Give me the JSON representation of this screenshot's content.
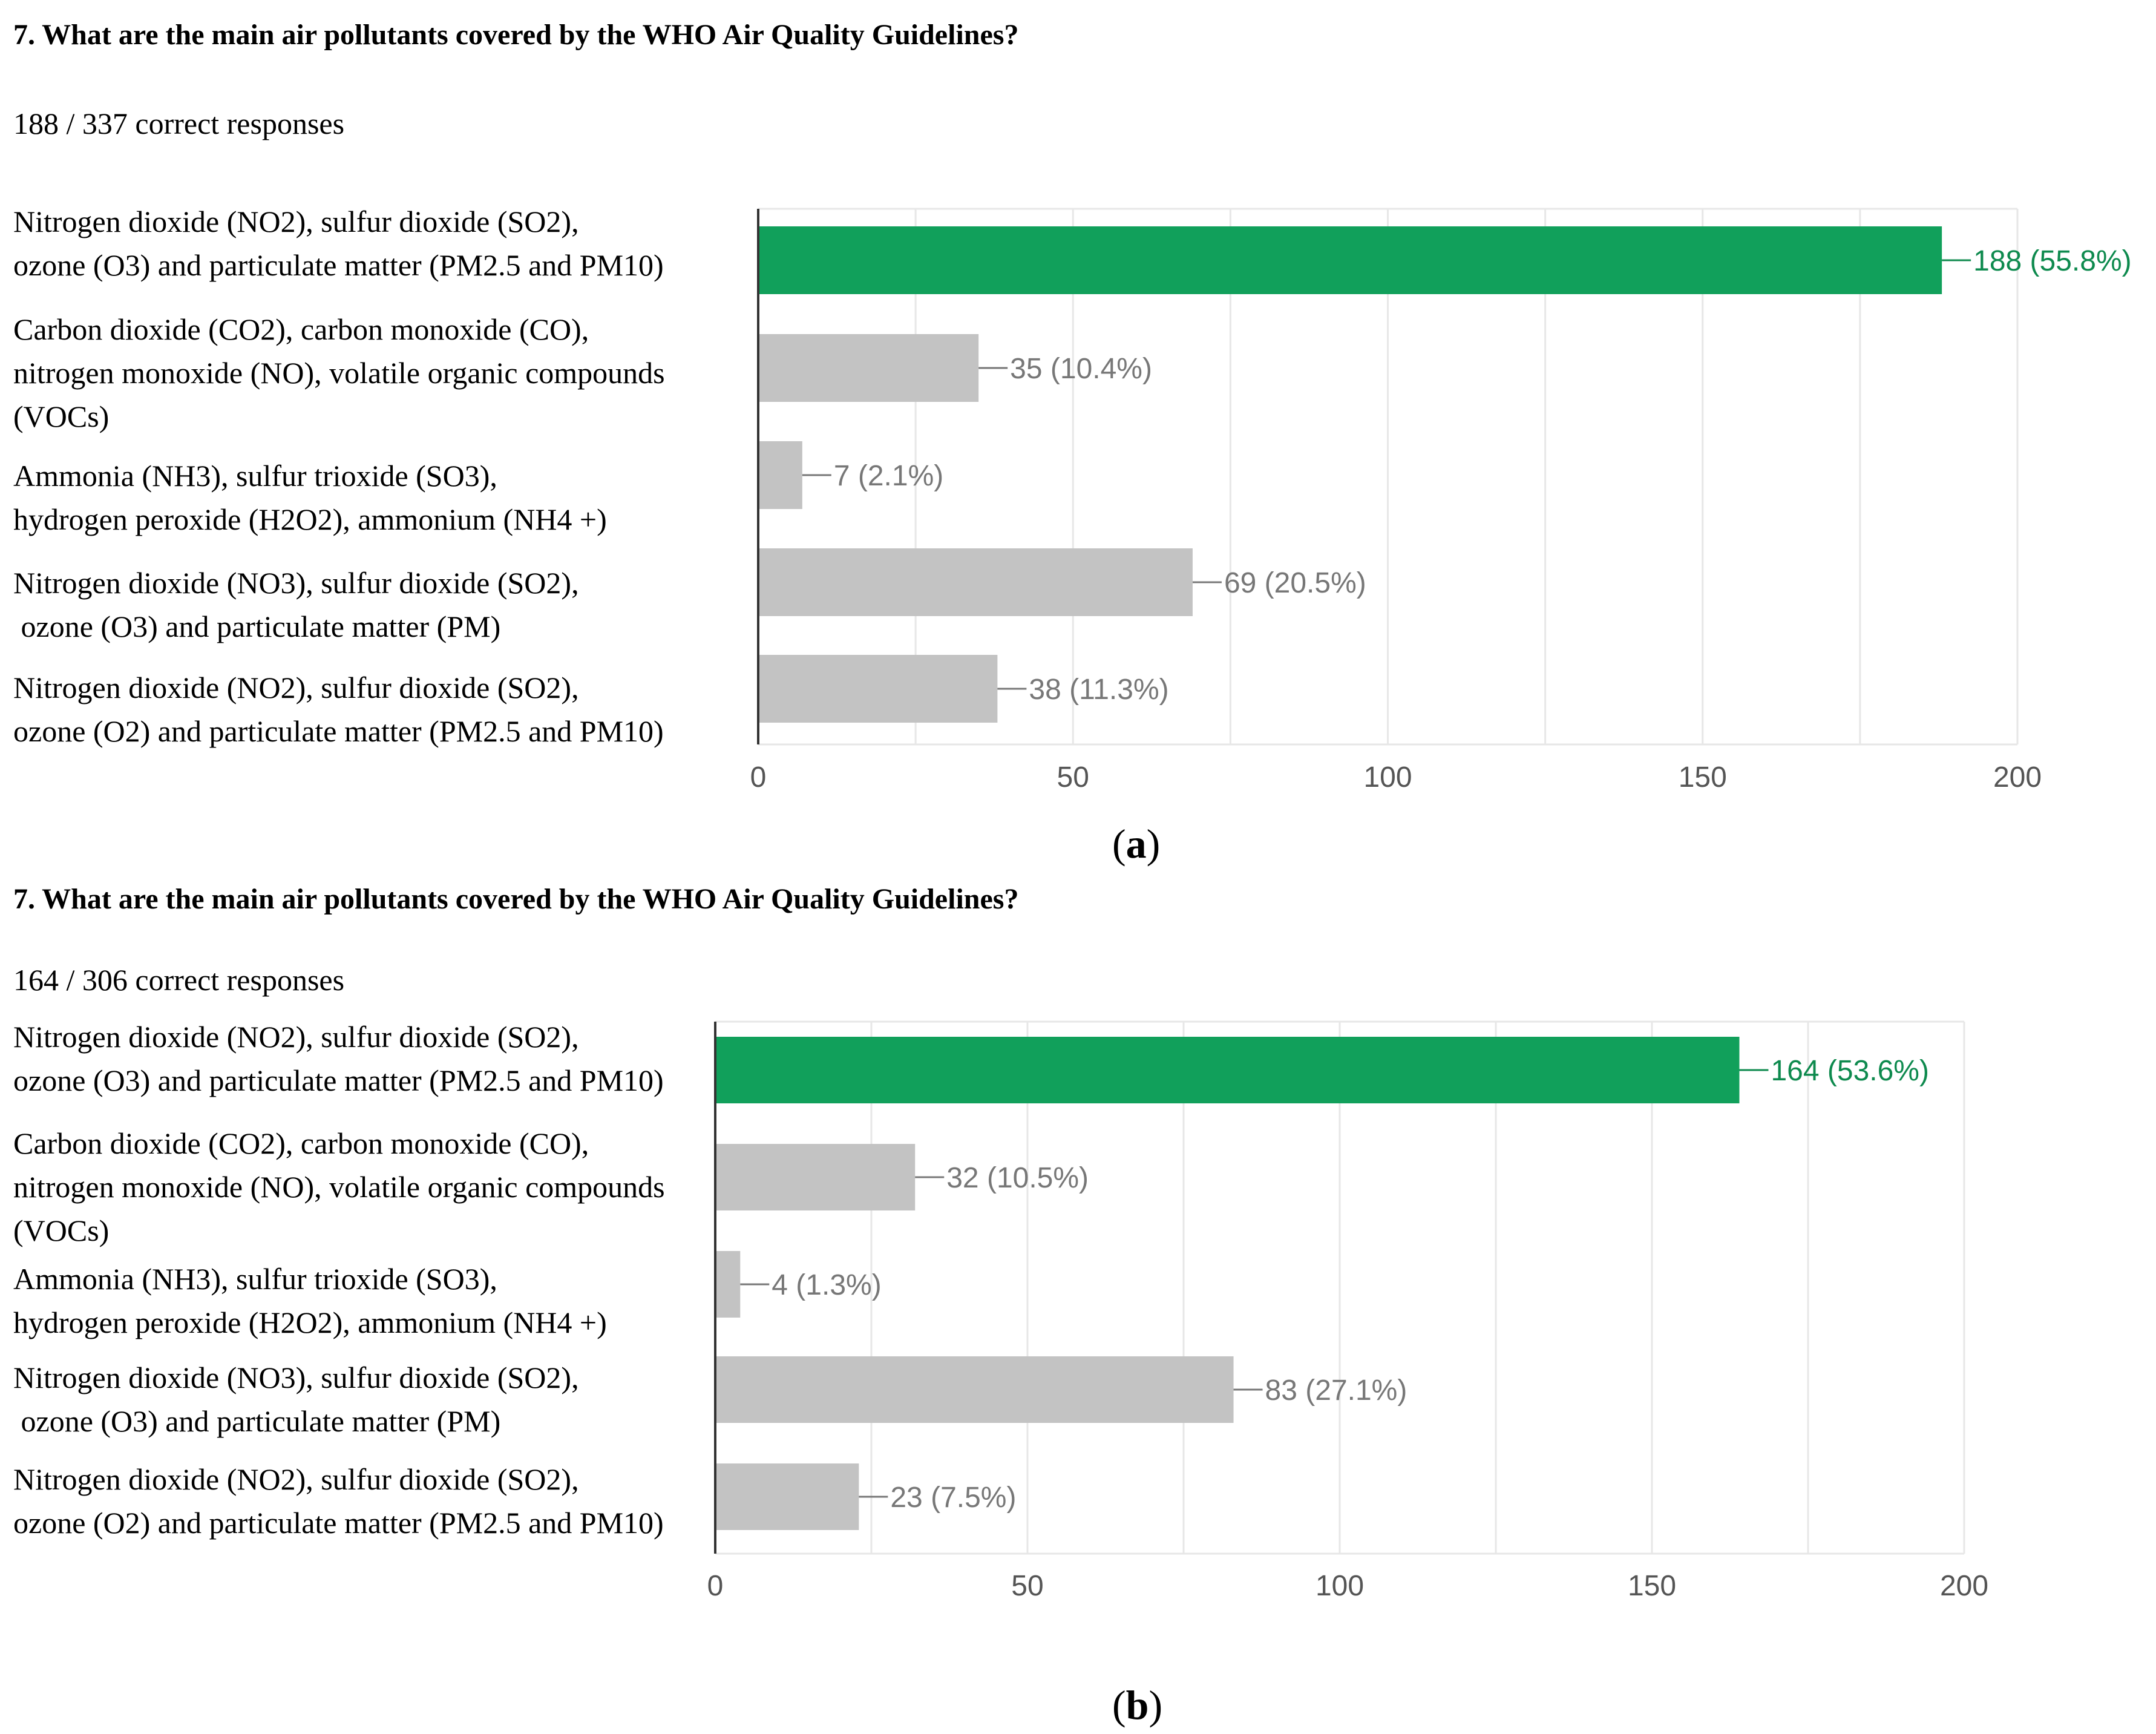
{
  "colors": {
    "correct_bar": "#11a05b",
    "correct_label": "#0e8a4e",
    "other_bar": "#c3c3c3",
    "other_label": "#777777",
    "grid": "#e7e7e7",
    "axis": "#333333",
    "tick": "#555555"
  },
  "panels": [
    {
      "question": "7. What are the main air pollutants covered by the WHO Air Quality Guidelines?",
      "responses": "188 / 337 correct responses",
      "caption": {
        "open": "(",
        "letter": "a",
        "close": ")"
      },
      "categories": [
        [
          "Nitrogen dioxide (NO2), sulfur dioxide (SO2),",
          "ozone (O3) and particulate matter (PM2.5 and PM10)"
        ],
        [
          "Carbon dioxide (CO2), carbon monoxide (CO),",
          "nitrogen monoxide (NO), volatile organic compounds",
          "(VOCs)"
        ],
        [
          "Ammonia (NH3), sulfur trioxide (SO3),",
          "hydrogen peroxide (H2O2), ammonium (NH4 +)"
        ],
        [
          "Nitrogen dioxide (NO3), sulfur dioxide (SO2),",
          " ozone (O3) and particulate matter (PM)"
        ],
        [
          "Nitrogen dioxide (NO2), sulfur dioxide (SO2),",
          "ozone (O2) and particulate matter (PM2.5 and PM10)"
        ]
      ]
    },
    {
      "question": "7. What are the main air pollutants covered by the WHO Air Quality Guidelines?",
      "responses": "164 / 306 correct responses",
      "caption": {
        "open": "(",
        "letter": "b",
        "close": ")"
      },
      "categories": [
        [
          "Nitrogen dioxide (NO2), sulfur dioxide (SO2),",
          "ozone (O3) and particulate matter (PM2.5 and PM10)"
        ],
        [
          "Carbon dioxide (CO2), carbon monoxide (CO),",
          "nitrogen monoxide (NO), volatile organic compounds",
          "(VOCs)"
        ],
        [
          "Ammonia (NH3), sulfur trioxide (SO3),",
          "hydrogen peroxide (H2O2), ammonium (NH4 +)"
        ],
        [
          "Nitrogen dioxide (NO3), sulfur dioxide (SO2),",
          " ozone (O3) and particulate matter (PM)"
        ],
        [
          "Nitrogen dioxide (NO2), sulfur dioxide (SO2),",
          "ozone (O2) and particulate matter (PM2.5 and PM10)"
        ]
      ]
    }
  ],
  "chart_data": [
    {
      "type": "bar",
      "orientation": "horizontal",
      "title": "7. What are the main air pollutants covered by the WHO Air Quality Guidelines?",
      "subtitle": "188 / 337 correct responses",
      "categories": [
        "Nitrogen dioxide (NO2), sulfur dioxide (SO2), ozone (O3) and particulate matter (PM2.5 and PM10)",
        "Carbon dioxide (CO2), carbon monoxide (CO), nitrogen monoxide (NO), volatile organic compounds (VOCs)",
        "Ammonia (NH3), sulfur trioxide (SO3), hydrogen peroxide (H2O2), ammonium (NH4 +)",
        "Nitrogen dioxide (NO3), sulfur dioxide (SO2), ozone (O3) and particulate matter (PM)",
        "Nitrogen dioxide (NO2), sulfur dioxide (SO2), ozone (O2) and particulate matter (PM2.5 and PM10)"
      ],
      "values": [
        188,
        35,
        7,
        69,
        38
      ],
      "data_labels": [
        "188 (55.8%)",
        "35 (10.4%)",
        "7 (2.1%)",
        "69 (20.5%)",
        "38 (11.3%)"
      ],
      "correct_index": 0,
      "xlim": [
        0,
        200
      ],
      "xticks": [
        0,
        50,
        100,
        150,
        200
      ],
      "grid": true,
      "xlabel": "",
      "ylabel": ""
    },
    {
      "type": "bar",
      "orientation": "horizontal",
      "title": "7. What are the main air pollutants covered by the WHO Air Quality Guidelines?",
      "subtitle": "164 / 306 correct responses",
      "categories": [
        "Nitrogen dioxide (NO2), sulfur dioxide (SO2), ozone (O3) and particulate matter (PM2.5 and PM10)",
        "Carbon dioxide (CO2), carbon monoxide (CO), nitrogen monoxide (NO), volatile organic compounds (VOCs)",
        "Ammonia (NH3), sulfur trioxide (SO3), hydrogen peroxide (H2O2), ammonium (NH4 +)",
        "Nitrogen dioxide (NO3), sulfur dioxide (SO2), ozone (O3) and particulate matter (PM)",
        "Nitrogen dioxide (NO2), sulfur dioxide (SO2), ozone (O2) and particulate matter (PM2.5 and PM10)"
      ],
      "values": [
        164,
        32,
        4,
        83,
        23
      ],
      "data_labels": [
        "164 (53.6%)",
        "32 (10.5%)",
        "4 (1.3%)",
        "83 (27.1%)",
        "23 (7.5%)"
      ],
      "correct_index": 0,
      "xlim": [
        0,
        200
      ],
      "xticks": [
        0,
        50,
        100,
        150,
        200
      ],
      "grid": true,
      "xlabel": "",
      "ylabel": ""
    }
  ]
}
